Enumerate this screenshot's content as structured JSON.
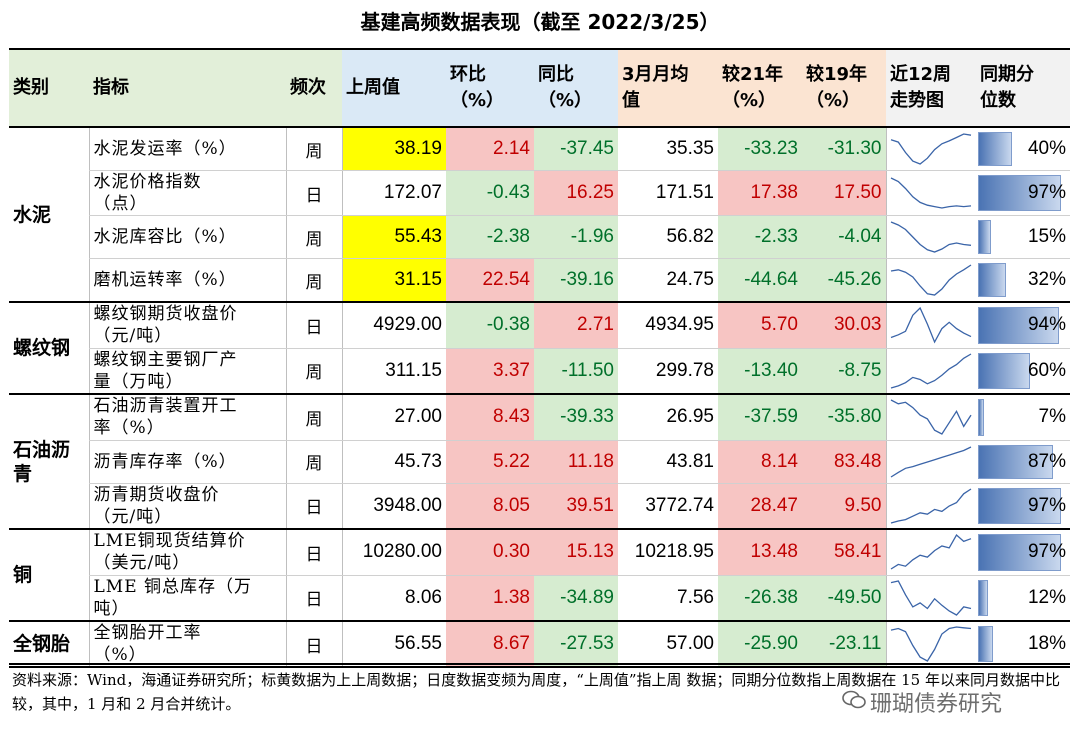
{
  "title": "基建高频数据表现（截至 2022/3/25）",
  "headers": {
    "cat": "类别",
    "ind": "指标",
    "freq": "频次",
    "last_week": "上周值",
    "mom": "环比\n（%）",
    "yoy": "同比\n（%）",
    "mar_avg": "3月月均\n值",
    "vs21": "较21年\n（%）",
    "vs19": "较19年\n（%）",
    "trend": "近12周\n走势图",
    "pctile": "同期分\n位数"
  },
  "categories": {
    "cement": "水泥",
    "rebar": "螺纹钢",
    "asphalt": "石油沥\n青",
    "copper": "铜",
    "tire": "全钢胎"
  },
  "rows": [
    {
      "ind": "水泥发运率（%）",
      "freq": "周",
      "last": "38.19",
      "mom": "2.14",
      "yoy": "-37.45",
      "avg": "35.35",
      "v21": "-33.23",
      "v19": "-31.30",
      "pct": "40%",
      "pct_value": 0.4,
      "last_hl": true,
      "trend": [
        62,
        58,
        40,
        25,
        20,
        30,
        45,
        55,
        60,
        66,
        72,
        70
      ]
    },
    {
      "ind": "水泥价格指数\n（点）",
      "freq": "日",
      "last": "172.07",
      "mom": "-0.43",
      "yoy": "16.25",
      "avg": "171.51",
      "v21": "17.38",
      "v19": "17.50",
      "pct": "97%",
      "pct_value": 0.97,
      "last_hl": false,
      "trend": [
        75,
        70,
        60,
        48,
        40,
        36,
        34,
        32,
        34,
        35,
        34,
        35
      ]
    },
    {
      "ind": "水泥库容比（%）",
      "freq": "周",
      "last": "55.43",
      "mom": "-2.38",
      "yoy": "-1.96",
      "avg": "56.82",
      "v21": "-2.33",
      "v19": "-4.04",
      "pct": "15%",
      "pct_value": 0.15,
      "last_hl": true,
      "trend": [
        70,
        66,
        60,
        50,
        40,
        33,
        30,
        34,
        40,
        42,
        40,
        39
      ]
    },
    {
      "ind": "磨机运转率（%）",
      "freq": "周",
      "last": "31.15",
      "mom": "22.54",
      "yoy": "-39.16",
      "avg": "24.75",
      "v21": "-44.64",
      "v19": "-45.26",
      "pct": "32%",
      "pct_value": 0.32,
      "last_hl": true,
      "trend": [
        60,
        62,
        58,
        50,
        35,
        22,
        20,
        30,
        45,
        55,
        62,
        70
      ]
    },
    {
      "ind": "螺纹钢期货收盘价\n（元/吨）",
      "freq": "日",
      "last": "4929.00",
      "mom": "-0.38",
      "yoy": "2.71",
      "avg": "4934.95",
      "v21": "5.70",
      "v19": "30.03",
      "pct": "94%",
      "pct_value": 0.94,
      "last_hl": false,
      "trend": [
        45,
        48,
        52,
        70,
        78,
        60,
        40,
        55,
        62,
        55,
        50,
        46
      ]
    },
    {
      "ind": "螺纹钢主要钢厂产\n量（万吨）",
      "freq": "周",
      "last": "311.15",
      "mom": "3.37",
      "yoy": "-11.50",
      "avg": "299.78",
      "v21": "-13.40",
      "v19": "-8.75",
      "pct": "60%",
      "pct_value": 0.6,
      "last_hl": false,
      "trend": [
        40,
        42,
        45,
        50,
        48,
        44,
        47,
        52,
        58,
        62,
        68,
        72
      ]
    },
    {
      "ind": "石油沥青装置开工\n率（%）",
      "freq": "周",
      "last": "27.00",
      "mom": "8.43",
      "yoy": "-39.33",
      "avg": "26.95",
      "v21": "-37.59",
      "v19": "-35.80",
      "pct": "7%",
      "pct_value": 0.07,
      "last_hl": false,
      "trend": [
        75,
        70,
        72,
        65,
        55,
        50,
        35,
        30,
        45,
        60,
        40,
        55
      ]
    },
    {
      "ind": "沥青库存率（%）",
      "freq": "周",
      "last": "45.73",
      "mom": "5.22",
      "yoy": "11.18",
      "avg": "43.81",
      "v21": "8.14",
      "v19": "83.48",
      "pct": "87%",
      "pct_value": 0.87,
      "last_hl": false,
      "trend": [
        20,
        28,
        35,
        38,
        42,
        46,
        50,
        54,
        58,
        62,
        66,
        72
      ]
    },
    {
      "ind": "沥青期货收盘价\n（元/吨）",
      "freq": "日",
      "last": "3948.00",
      "mom": "8.05",
      "yoy": "39.51",
      "avg": "3772.74",
      "v21": "28.47",
      "v19": "9.50",
      "pct": "97%",
      "pct_value": 0.97,
      "last_hl": false,
      "trend": [
        25,
        28,
        30,
        35,
        40,
        38,
        45,
        42,
        50,
        55,
        68,
        75
      ]
    },
    {
      "ind": "LME铜现货结算价\n（美元/吨）",
      "freq": "日",
      "last": "10280.00",
      "mom": "0.30",
      "yoy": "15.13",
      "avg": "10218.95",
      "v21": "13.48",
      "v19": "58.41",
      "pct": "97%",
      "pct_value": 0.97,
      "last_hl": false,
      "trend": [
        35,
        40,
        38,
        45,
        50,
        48,
        55,
        60,
        58,
        72,
        65,
        68
      ]
    },
    {
      "ind": "LME 铜总库存（万\n吨）",
      "freq": "日",
      "last": "8.06",
      "mom": "1.38",
      "yoy": "-34.89",
      "avg": "7.56",
      "v21": "-26.38",
      "v19": "-49.50",
      "pct": "12%",
      "pct_value": 0.12,
      "last_hl": false,
      "trend": [
        70,
        72,
        55,
        40,
        45,
        38,
        50,
        42,
        35,
        30,
        40,
        38
      ]
    },
    {
      "ind": "全钢胎开工率\n（%）",
      "freq": "日",
      "last": "56.55",
      "mom": "8.67",
      "yoy": "-27.53",
      "avg": "57.00",
      "v21": "-25.90",
      "v19": "-23.11",
      "pct": "18%",
      "pct_value": 0.18,
      "last_hl": false,
      "trend": [
        60,
        62,
        58,
        40,
        25,
        20,
        35,
        55,
        62,
        64,
        63,
        62
      ]
    }
  ],
  "colors": {
    "highlight_yellow": "#ffff00",
    "pink_fill": "#f7c5c3",
    "green_fill": "#d6ecd0",
    "red_text": "#c00000",
    "green_text": "#00702a",
    "bar_blue": "#4a73b3"
  },
  "note": "资料来源：Wind，海通证券研究所；标黄数据为上上周数据；日度数据变频为周度，“上周值”指上周 数据；同期分位数指上周数据在 15 年以来同月数据中比较，其中，1 月和 2 月合并统计。",
  "watermark": "珊瑚债券研究",
  "watermark_icon": "wechat-icon"
}
